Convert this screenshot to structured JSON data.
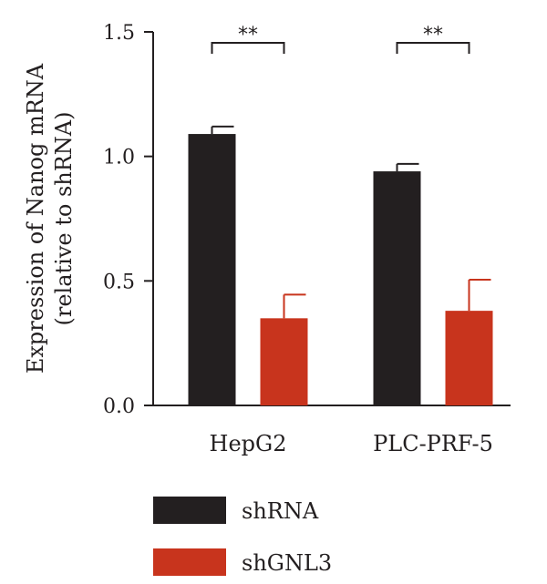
{
  "chart_data": {
    "type": "bar",
    "ylabel": "Expression of Nanog mRNA",
    "ylabel_line2": "(relative to shRNA)",
    "ylim": [
      0,
      1.5
    ],
    "yticks": [
      "0.0",
      "0.5",
      "1.0",
      "1.5"
    ],
    "ytick_values": [
      0,
      0.5,
      1.0,
      1.5
    ],
    "categories": [
      "HepG2",
      "PLC-PRF-5"
    ],
    "series": [
      {
        "name": "shRNA",
        "color": "#231f20",
        "values": [
          1.09,
          0.94
        ],
        "errors": [
          0.03,
          0.03
        ]
      },
      {
        "name": "shGNL3",
        "color": "#c8341d",
        "values": [
          0.35,
          0.38
        ],
        "errors": [
          0.095,
          0.125
        ]
      }
    ],
    "significance": [
      {
        "category": "HepG2",
        "label": "**"
      },
      {
        "category": "PLC-PRF-5",
        "label": "**"
      }
    ],
    "legend_position": "bottom-left",
    "grid": false
  }
}
